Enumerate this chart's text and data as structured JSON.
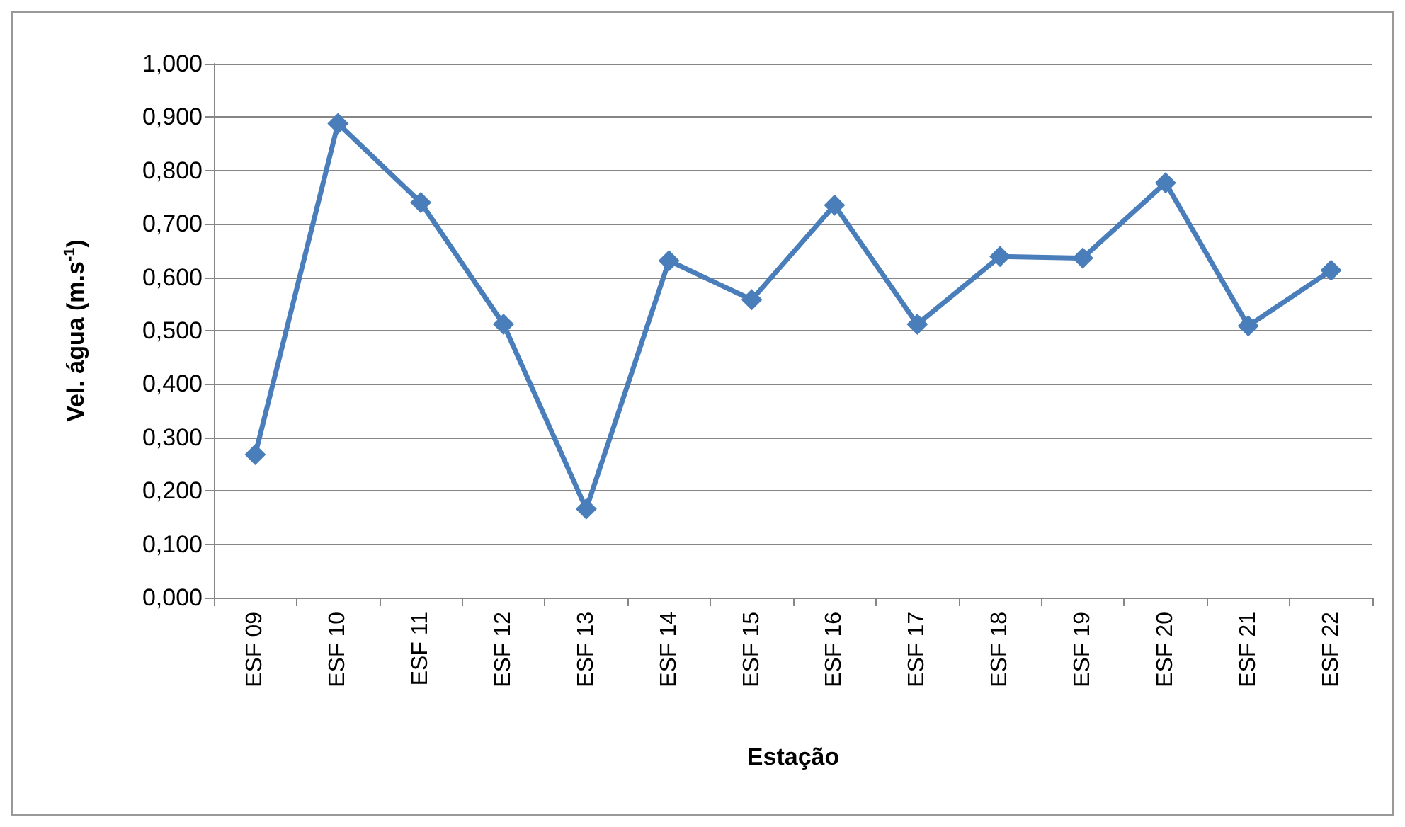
{
  "chart_data": {
    "type": "line",
    "xlabel": "Estação",
    "ylabel": "Vel. água (m.s$^{-1}$)",
    "categories": [
      "ESF 09",
      "ESF 10",
      "ESF 11",
      "ESF 12",
      "ESF 13",
      "ESF 14",
      "ESF 15",
      "ESF 16",
      "ESF 17",
      "ESF 18",
      "ESF 19",
      "ESF 20",
      "ESF 21",
      "ESF 22"
    ],
    "series": [
      {
        "color": "#4a7ebb",
        "values": [
          0.268,
          0.888,
          0.74,
          0.512,
          0.166,
          0.631,
          0.558,
          0.735,
          0.512,
          0.639,
          0.636,
          0.777,
          0.509,
          0.613
        ]
      }
    ],
    "ylim": [
      0,
      1
    ],
    "yticks": [
      {
        "value": 0,
        "label": "0,000"
      },
      {
        "value": 0.1,
        "label": "0,100"
      },
      {
        "value": 0.2,
        "label": "0,200"
      },
      {
        "value": 0.3,
        "label": "0,300"
      },
      {
        "value": 0.4,
        "label": "0,400"
      },
      {
        "value": 0.5,
        "label": "0,500"
      },
      {
        "value": 0.6,
        "label": "0,600"
      },
      {
        "value": 0.7,
        "label": "0,700"
      },
      {
        "value": 0.8,
        "label": "0,800"
      },
      {
        "value": 0.9,
        "label": "0,900"
      },
      {
        "value": 1,
        "label": "1,000"
      }
    ],
    "grid": "y",
    "marker": "diamond",
    "line_style": "solid"
  }
}
